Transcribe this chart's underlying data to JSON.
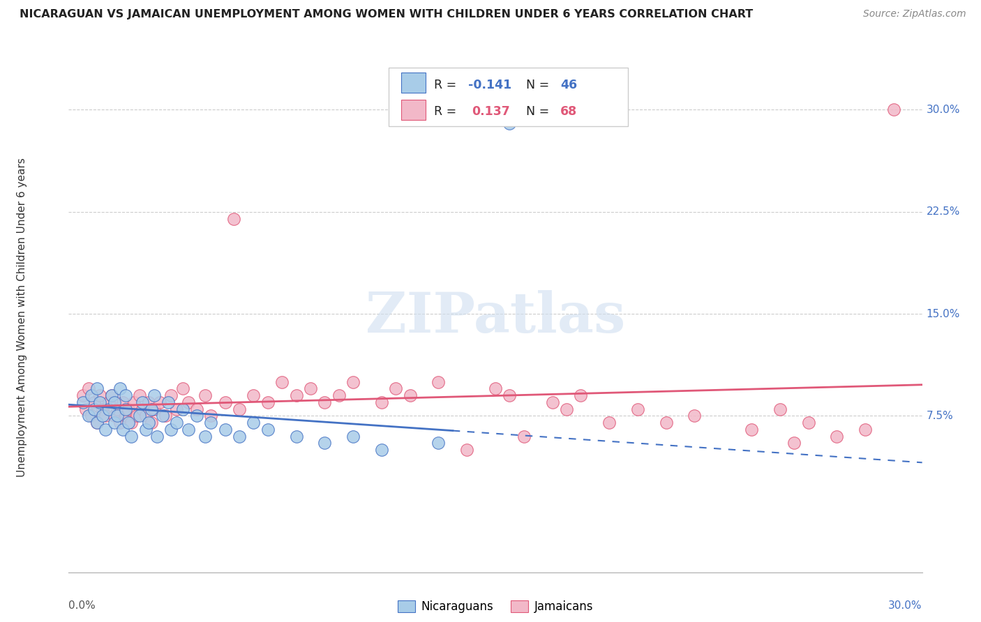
{
  "title": "NICARAGUAN VS JAMAICAN UNEMPLOYMENT AMONG WOMEN WITH CHILDREN UNDER 6 YEARS CORRELATION CHART",
  "source": "Source: ZipAtlas.com",
  "ylabel": "Unemployment Among Women with Children Under 6 years",
  "xmin": 0.0,
  "xmax": 0.3,
  "ymin": -0.04,
  "ymax": 0.335,
  "yticks": [
    0.075,
    0.15,
    0.225,
    0.3
  ],
  "ytick_labels": [
    "7.5%",
    "15.0%",
    "22.5%",
    "30.0%"
  ],
  "nicaraguan_color": "#a8cce8",
  "jamaican_color": "#f2b8c8",
  "nicaraguan_line_color": "#4472c4",
  "jamaican_line_color": "#e05878",
  "R_nicaraguan": -0.141,
  "N_nicaraguan": 46,
  "R_jamaican": 0.137,
  "N_jamaican": 68,
  "nic_x": [
    0.005,
    0.007,
    0.008,
    0.009,
    0.01,
    0.01,
    0.011,
    0.012,
    0.013,
    0.014,
    0.015,
    0.016,
    0.016,
    0.017,
    0.018,
    0.019,
    0.02,
    0.02,
    0.021,
    0.022,
    0.025,
    0.026,
    0.027,
    0.028,
    0.029,
    0.03,
    0.031,
    0.033,
    0.035,
    0.036,
    0.038,
    0.04,
    0.042,
    0.045,
    0.048,
    0.05,
    0.055,
    0.06,
    0.065,
    0.07,
    0.08,
    0.09,
    0.1,
    0.11,
    0.13,
    0.155
  ],
  "nic_y": [
    0.085,
    0.075,
    0.09,
    0.08,
    0.095,
    0.07,
    0.085,
    0.075,
    0.065,
    0.08,
    0.09,
    0.07,
    0.085,
    0.075,
    0.095,
    0.065,
    0.08,
    0.09,
    0.07,
    0.06,
    0.075,
    0.085,
    0.065,
    0.07,
    0.08,
    0.09,
    0.06,
    0.075,
    0.085,
    0.065,
    0.07,
    0.08,
    0.065,
    0.075,
    0.06,
    0.07,
    0.065,
    0.06,
    0.07,
    0.065,
    0.06,
    0.055,
    0.06,
    0.05,
    0.055,
    0.29
  ],
  "jam_x": [
    0.005,
    0.006,
    0.007,
    0.008,
    0.009,
    0.01,
    0.011,
    0.012,
    0.013,
    0.014,
    0.015,
    0.016,
    0.017,
    0.018,
    0.019,
    0.02,
    0.021,
    0.022,
    0.023,
    0.024,
    0.025,
    0.026,
    0.027,
    0.028,
    0.029,
    0.03,
    0.032,
    0.034,
    0.036,
    0.038,
    0.04,
    0.042,
    0.045,
    0.048,
    0.05,
    0.055,
    0.058,
    0.06,
    0.065,
    0.07,
    0.075,
    0.08,
    0.085,
    0.09,
    0.095,
    0.1,
    0.11,
    0.115,
    0.12,
    0.13,
    0.14,
    0.15,
    0.155,
    0.16,
    0.17,
    0.175,
    0.18,
    0.19,
    0.2,
    0.21,
    0.22,
    0.24,
    0.25,
    0.255,
    0.26,
    0.27,
    0.28,
    0.29
  ],
  "jam_y": [
    0.09,
    0.08,
    0.095,
    0.075,
    0.085,
    0.07,
    0.09,
    0.08,
    0.075,
    0.085,
    0.09,
    0.075,
    0.08,
    0.07,
    0.085,
    0.075,
    0.08,
    0.07,
    0.085,
    0.075,
    0.09,
    0.08,
    0.075,
    0.085,
    0.07,
    0.08,
    0.085,
    0.075,
    0.09,
    0.08,
    0.095,
    0.085,
    0.08,
    0.09,
    0.075,
    0.085,
    0.22,
    0.08,
    0.09,
    0.085,
    0.1,
    0.09,
    0.095,
    0.085,
    0.09,
    0.1,
    0.085,
    0.095,
    0.09,
    0.1,
    0.05,
    0.095,
    0.09,
    0.06,
    0.085,
    0.08,
    0.09,
    0.07,
    0.08,
    0.07,
    0.075,
    0.065,
    0.08,
    0.055,
    0.07,
    0.06,
    0.065,
    0.3
  ],
  "legend_blue_label_r": "R = ",
  "legend_blue_r_val": "-0.141",
  "legend_blue_n_label": "N = ",
  "legend_blue_n_val": "46",
  "legend_pink_label_r": "R =  ",
  "legend_pink_r_val": "0.137",
  "legend_pink_n_label": "N = ",
  "legend_pink_n_val": "68"
}
